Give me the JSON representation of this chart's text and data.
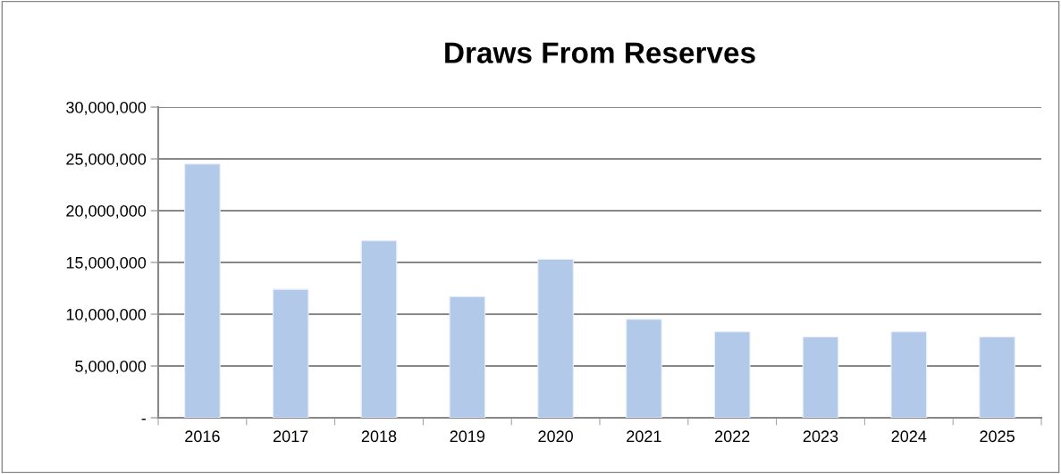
{
  "chart_data": {
    "type": "bar",
    "title": "Draws From Reserves",
    "categories": [
      "2016",
      "2017",
      "2018",
      "2019",
      "2020",
      "2021",
      "2022",
      "2023",
      "2024",
      "2025"
    ],
    "series": [
      {
        "color": "#b3c9e9",
        "values": [
          24500000,
          12400000,
          17100000,
          11700000,
          15300000,
          9500000,
          8300000,
          7800000,
          8300000,
          7800000
        ]
      }
    ],
    "ylim": [
      0,
      30000000
    ],
    "yticks": [
      {
        "value": 0,
        "label": "-"
      },
      {
        "value": 5000000,
        "label": "5,000,000"
      },
      {
        "value": 10000000,
        "label": "10,000,000"
      },
      {
        "value": 15000000,
        "label": "15,000,000"
      },
      {
        "value": 20000000,
        "label": "20,000,000"
      },
      {
        "value": 25000000,
        "label": "25,000,000"
      },
      {
        "value": 30000000,
        "label": "30,000,000"
      }
    ],
    "grid": "y",
    "legend": false
  }
}
